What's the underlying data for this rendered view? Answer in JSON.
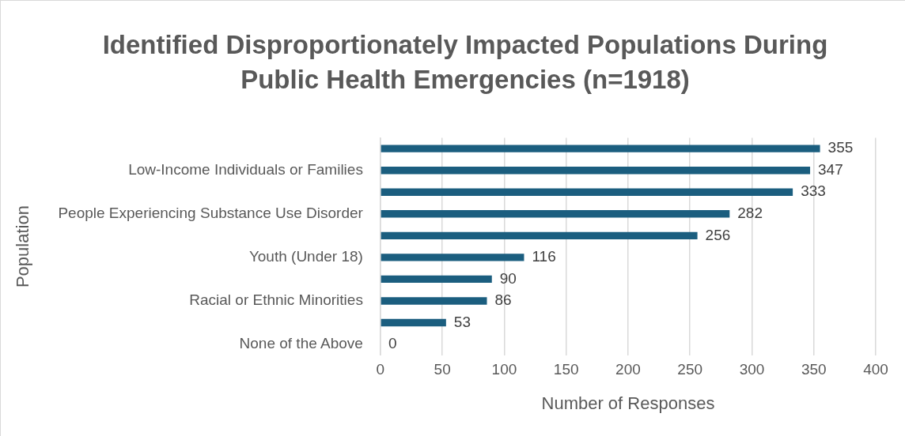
{
  "chart_data": {
    "type": "bar",
    "orientation": "horizontal",
    "title": "Identified Disproportionately Impacted Populations During Public Health Emergencies (n=1918)",
    "categories": [
      null,
      "Low-Income Individuals or Families",
      null,
      "People Experiencing Substance Use Disorder",
      null,
      "Youth (Under 18)",
      null,
      "Racial or Ethnic Minorities",
      null,
      "None of the Above"
    ],
    "values": [
      355,
      347,
      333,
      282,
      256,
      116,
      90,
      86,
      53,
      0
    ],
    "color": "#1b5e7f",
    "xlabel": "Number of Responses",
    "ylabel": "Population",
    "xlim": [
      0,
      400
    ],
    "xticks": [
      0,
      50,
      100,
      150,
      200,
      250,
      300,
      350,
      400
    ],
    "grid": "x",
    "legend": false,
    "data_labels": true
  }
}
